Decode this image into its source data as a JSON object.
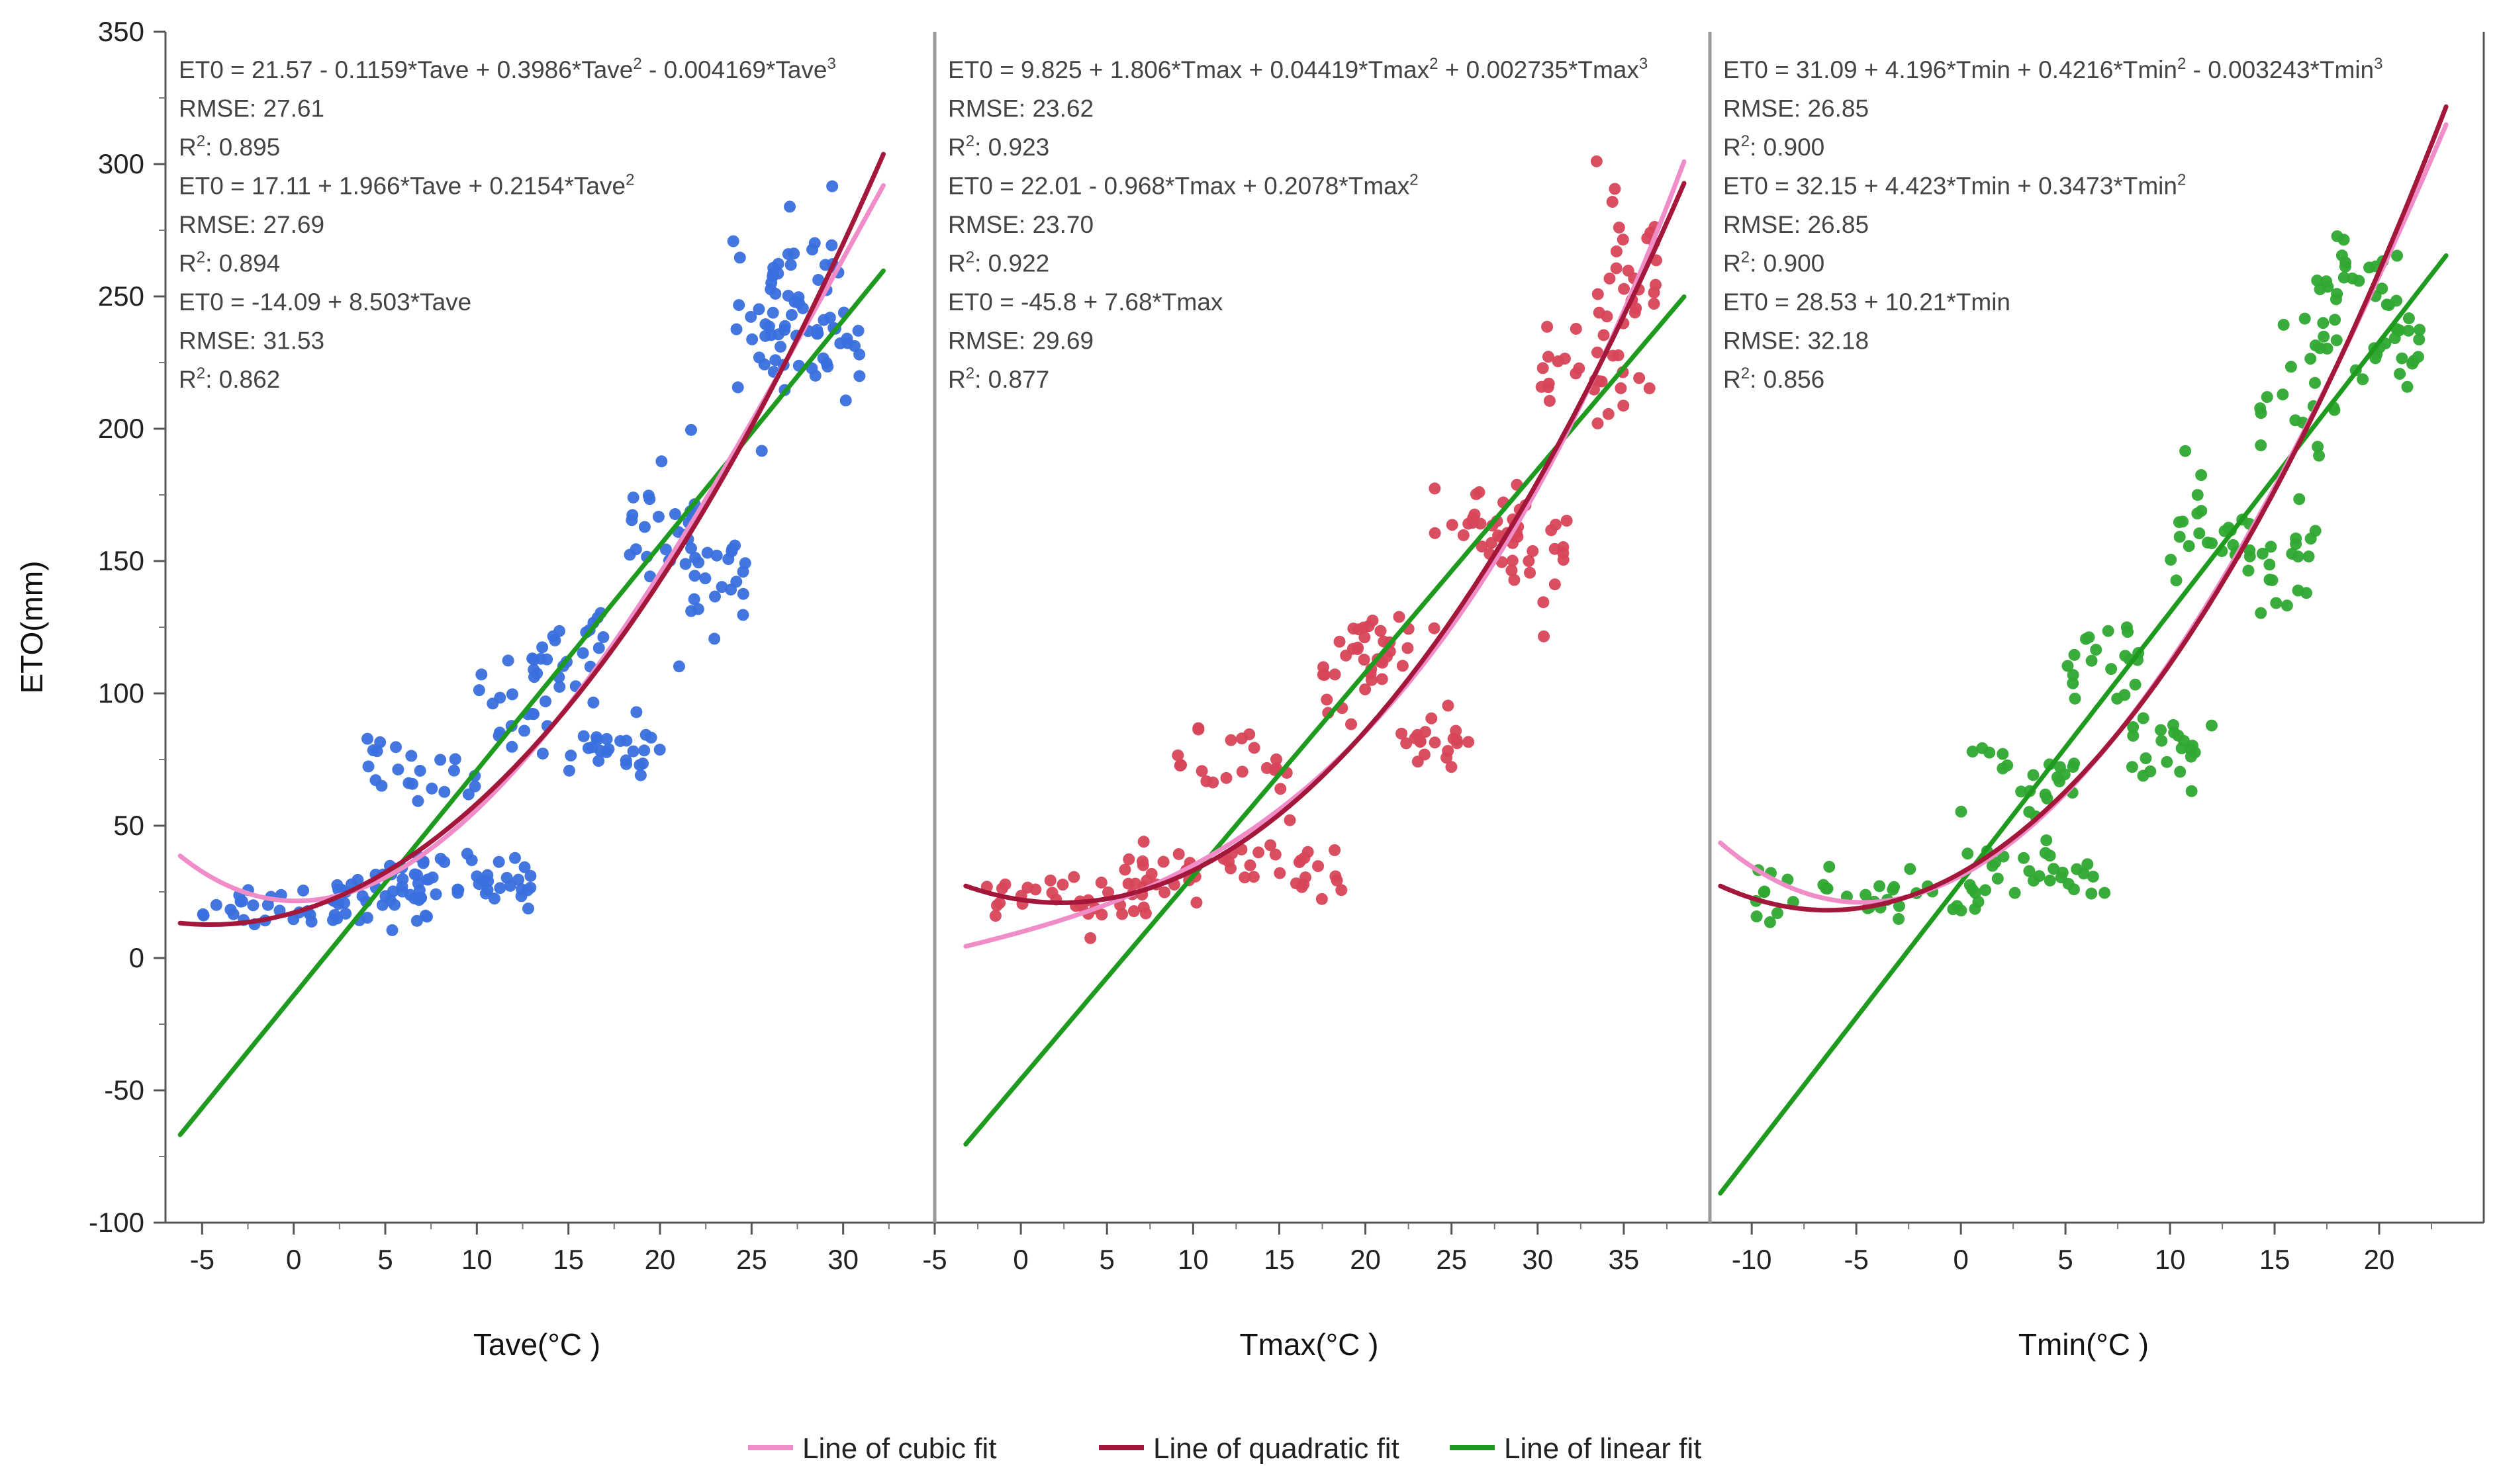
{
  "chart_data": {
    "type": "scatter",
    "ylabel": "ETO(mm)",
    "ylim": [
      -100,
      350
    ],
    "yticks": [
      -100,
      -50,
      0,
      50,
      100,
      150,
      200,
      250,
      300,
      350
    ],
    "legend": {
      "placement": "bottom-center",
      "entries": [
        {
          "label": "Line of cubic fit",
          "color": "#f08cc8"
        },
        {
          "label": "Line of quadratic fit",
          "color": "#a3173a"
        },
        {
          "label": "Line of linear fit",
          "color": "#1e9a1e"
        }
      ]
    },
    "panels": [
      {
        "xlabel": "Tave(°C )",
        "xlim": [
          -7,
          35
        ],
        "xticks": [
          -5,
          0,
          5,
          10,
          15,
          20,
          25,
          30
        ],
        "point_color": "#3a6fde",
        "fit_range": [
          -6.2,
          32.2
        ],
        "fits": {
          "cubic": [
            21.57,
            -0.1159,
            0.3986,
            -0.004169
          ],
          "quadratic": [
            17.11,
            1.966,
            0.2154
          ],
          "linear": [
            -14.09,
            8.503
          ]
        },
        "clusters": [
          {
            "x": [
              -5,
              4
            ],
            "a": 0,
            "b": 0.6,
            "c": 0,
            "spread": 5,
            "n": 40,
            "base": 18
          },
          {
            "x": [
              4,
              8
            ],
            "a": 0,
            "b": 0,
            "c": 0,
            "spread": 6,
            "n": 25,
            "base": 25
          },
          {
            "x": [
              5,
              13
            ],
            "a": 0,
            "b": 0,
            "c": 0,
            "spread": 5,
            "n": 40,
            "base": 30
          },
          {
            "x": [
              4,
              10
            ],
            "a": 0,
            "b": 0,
            "c": 0,
            "spread": 7,
            "n": 22,
            "base": 68
          },
          {
            "x": [
              10,
              14
            ],
            "a": 0,
            "b": 0,
            "c": 0,
            "spread": 8,
            "n": 18,
            "base": 95
          },
          {
            "x": [
              13,
              17
            ],
            "a": 0,
            "b": 0,
            "c": 0,
            "spread": 8,
            "n": 25,
            "base": 115
          },
          {
            "x": [
              15,
              20
            ],
            "a": 0,
            "b": 0,
            "c": 0,
            "spread": 6,
            "n": 25,
            "base": 80
          },
          {
            "x": [
              18,
              22
            ],
            "a": 0,
            "b": 0,
            "c": 0,
            "spread": 12,
            "n": 25,
            "base": 165
          },
          {
            "x": [
              21,
              25
            ],
            "a": 0,
            "b": 0,
            "c": 0,
            "spread": 10,
            "n": 25,
            "base": 145
          },
          {
            "x": [
              24,
              27
            ],
            "a": 0,
            "b": 0,
            "c": 0,
            "spread": 15,
            "n": 20,
            "base": 230
          },
          {
            "x": [
              26,
              30
            ],
            "a": 0,
            "b": 0,
            "c": 0,
            "spread": 15,
            "n": 35,
            "base": 250
          },
          {
            "x": [
              27,
              31
            ],
            "a": 0,
            "b": 0,
            "c": 0,
            "spread": 8,
            "n": 20,
            "base": 230
          }
        ],
        "equations": [
          {
            "parts": [
              "ET0 = 21.57 - 0.1159*Tave + 0.3986*Tave",
              "2",
              " - 0.004169*Tave",
              "3"
            ]
          },
          {
            "parts": [
              "RMSE: 27.61"
            ]
          },
          {
            "parts": [
              "R",
              "2",
              ": 0.895"
            ]
          },
          {
            "parts": [
              "ET0 = 17.11 + 1.966*Tave + 0.2154*Tave",
              "2"
            ]
          },
          {
            "parts": [
              "RMSE: 27.69"
            ]
          },
          {
            "parts": [
              "R",
              "2",
              ": 0.894"
            ]
          },
          {
            "parts": [
              "ET0 = -14.09 + 8.503*Tave"
            ]
          },
          {
            "parts": [
              "RMSE: 31.53"
            ]
          },
          {
            "parts": [
              "R",
              "2",
              ": 0.862"
            ]
          }
        ]
      },
      {
        "xlabel": "Tmax(°C )",
        "xlim": [
          -5,
          40
        ],
        "xticks": [
          -5,
          0,
          5,
          10,
          15,
          20,
          25,
          30,
          35
        ],
        "point_color": "#d8445a",
        "fit_range": [
          -3.2,
          38.5
        ],
        "fits": {
          "cubic": [
            9.825,
            1.806,
            0.04419,
            0.002735
          ],
          "quadratic": [
            22.01,
            -0.968,
            0.2078
          ],
          "linear": [
            -45.8,
            7.68
          ]
        },
        "clusters": [
          {
            "x": [
              -2,
              8
            ],
            "a": 0,
            "b": 0,
            "c": 0,
            "spread": 5,
            "n": 35,
            "base": 22
          },
          {
            "x": [
              6,
              19
            ],
            "a": 0,
            "b": 0,
            "c": 0,
            "spread": 5,
            "n": 45,
            "base": 33
          },
          {
            "x": [
              9,
              16
            ],
            "a": 0,
            "b": 0,
            "c": 0,
            "spread": 7,
            "n": 22,
            "base": 70
          },
          {
            "x": [
              17,
              21
            ],
            "a": 0,
            "b": 0,
            "c": 0,
            "spread": 9,
            "n": 18,
            "base": 105
          },
          {
            "x": [
              19,
              24
            ],
            "a": 0,
            "b": 0,
            "c": 0,
            "spread": 8,
            "n": 20,
            "base": 120
          },
          {
            "x": [
              22,
              26
            ],
            "a": 0,
            "b": 0,
            "c": 0,
            "spread": 7,
            "n": 20,
            "base": 82
          },
          {
            "x": [
              24,
              30
            ],
            "a": 0,
            "b": 0,
            "c": 0,
            "spread": 10,
            "n": 25,
            "base": 165
          },
          {
            "x": [
              28,
              32
            ],
            "a": 0,
            "b": 0,
            "c": 0,
            "spread": 10,
            "n": 22,
            "base": 150
          },
          {
            "x": [
              30,
              35
            ],
            "a": 0,
            "b": 0,
            "c": 0,
            "spread": 12,
            "n": 25,
            "base": 220
          },
          {
            "x": [
              33,
              37
            ],
            "a": 0,
            "b": 0,
            "c": 0,
            "spread": 15,
            "n": 30,
            "base": 255
          }
        ],
        "equations": [
          {
            "parts": [
              "ET0 = 9.825 + 1.806*Tmax + 0.04419*Tmax",
              "2",
              " + 0.002735*Tmax",
              "3"
            ]
          },
          {
            "parts": [
              "RMSE: 23.62"
            ]
          },
          {
            "parts": [
              "R",
              "2",
              ": 0.923"
            ]
          },
          {
            "parts": [
              "ET0 = 22.01 - 0.968*Tmax + 0.2078*Tmax",
              "2"
            ]
          },
          {
            "parts": [
              "RMSE: 23.70"
            ]
          },
          {
            "parts": [
              "R",
              "2",
              ": 0.922"
            ]
          },
          {
            "parts": [
              "ET0 = -45.8 + 7.68*Tmax"
            ]
          },
          {
            "parts": [
              "RMSE: 29.69"
            ]
          },
          {
            "parts": [
              "R",
              "2",
              ": 0.877"
            ]
          }
        ]
      },
      {
        "xlabel": "Tmin(°C )",
        "xlim": [
          -12,
          25
        ],
        "xticks": [
          -10,
          -5,
          0,
          5,
          10,
          15,
          20
        ],
        "point_color": "#2fa830",
        "fit_range": [
          -11.5,
          23.2
        ],
        "fits": {
          "cubic": [
            31.09,
            4.196,
            0.4216,
            -0.003243
          ],
          "quadratic": [
            32.15,
            4.423,
            0.3473
          ],
          "linear": [
            28.53,
            10.21
          ]
        },
        "clusters": [
          {
            "x": [
              -10,
              2
            ],
            "a": 0,
            "b": 0,
            "c": 0,
            "spread": 6,
            "n": 40,
            "base": 25
          },
          {
            "x": [
              1,
              7
            ],
            "a": 0,
            "b": 0,
            "c": 0,
            "spread": 5,
            "n": 25,
            "base": 32
          },
          {
            "x": [
              0,
              6
            ],
            "a": 0,
            "b": 0,
            "c": 0,
            "spread": 7,
            "n": 22,
            "base": 68
          },
          {
            "x": [
              5,
              9
            ],
            "a": 0,
            "b": 0,
            "c": 0,
            "spread": 9,
            "n": 20,
            "base": 110
          },
          {
            "x": [
              8,
              12
            ],
            "a": 0,
            "b": 0,
            "c": 0,
            "spread": 7,
            "n": 22,
            "base": 80
          },
          {
            "x": [
              10,
              14
            ],
            "a": 0,
            "b": 0,
            "c": 0,
            "spread": 10,
            "n": 22,
            "base": 160
          },
          {
            "x": [
              13,
              17
            ],
            "a": 0,
            "b": 0,
            "c": 0,
            "spread": 10,
            "n": 22,
            "base": 150
          },
          {
            "x": [
              14,
              18
            ],
            "a": 0,
            "b": 0,
            "c": 0,
            "spread": 12,
            "n": 20,
            "base": 215
          },
          {
            "x": [
              17,
              21
            ],
            "a": 0,
            "b": 0,
            "c": 0,
            "spread": 14,
            "n": 30,
            "base": 250
          },
          {
            "x": [
              19,
              22
            ],
            "a": 0,
            "b": 0,
            "c": 0,
            "spread": 8,
            "n": 18,
            "base": 228
          }
        ],
        "equations": [
          {
            "parts": [
              "ET0 = 31.09 + 4.196*Tmin + 0.4216*Tmin",
              "2",
              " - 0.003243*Tmin",
              "3"
            ]
          },
          {
            "parts": [
              "RMSE: 26.85"
            ]
          },
          {
            "parts": [
              "R",
              "2",
              ": 0.900"
            ]
          },
          {
            "parts": [
              "ET0 = 32.15 + 4.423*Tmin + 0.3473*Tmin",
              "2"
            ]
          },
          {
            "parts": [
              "RMSE: 26.85"
            ]
          },
          {
            "parts": [
              "R",
              "2",
              ": 0.900"
            ]
          },
          {
            "parts": [
              "ET0 = 28.53 + 10.21*Tmin"
            ]
          },
          {
            "parts": [
              "RMSE: 32.18"
            ]
          },
          {
            "parts": [
              "R",
              "2",
              ": 0.856"
            ]
          }
        ]
      }
    ]
  }
}
